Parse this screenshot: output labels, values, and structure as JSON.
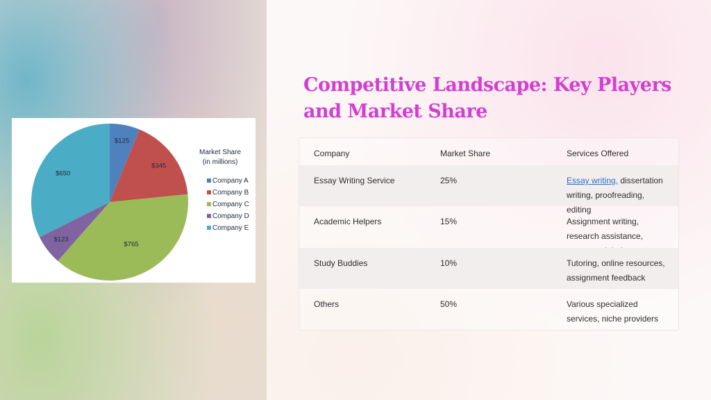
{
  "slide": {
    "title": "Competitive Landscape: Key Players and Market Share"
  },
  "chart_data": {
    "type": "pie",
    "title": "Market Share\n(in millions)",
    "legend_title_line1": "Market Share",
    "legend_title_line2": "(in millions)",
    "legend_position": "right",
    "categories": [
      "Company A",
      "Company B",
      "Company C",
      "Company D",
      "Company E"
    ],
    "values": [
      125,
      345,
      765,
      123,
      650
    ],
    "labels": [
      "$125",
      "$345",
      "$765",
      "$123",
      "$650"
    ],
    "colors": [
      "#4f81bd",
      "#c0504d",
      "#9bbb59",
      "#8064a2",
      "#4bacc6"
    ]
  },
  "table": {
    "headers": [
      "Company",
      "Market Share",
      "Services Offered"
    ],
    "rows": [
      {
        "company": "Essay Writing Service",
        "share": "25%",
        "services_link": "Essay writing,",
        "services_lines": [
          " dissertation",
          "writing, proofreading,",
          "editing"
        ]
      },
      {
        "company": "Academic Helpers",
        "share": "15%",
        "services_lines": [
          "Assignment writing,",
          "research assistance,",
          "coursework help"
        ]
      },
      {
        "company": "Study Buddies",
        "share": "10%",
        "services_lines": [
          "Tutoring, online resources,",
          "assignment feedback"
        ]
      },
      {
        "company": "Others",
        "share": "50%",
        "services_lines": [
          "Various specialized",
          "services, niche providers"
        ]
      }
    ]
  }
}
